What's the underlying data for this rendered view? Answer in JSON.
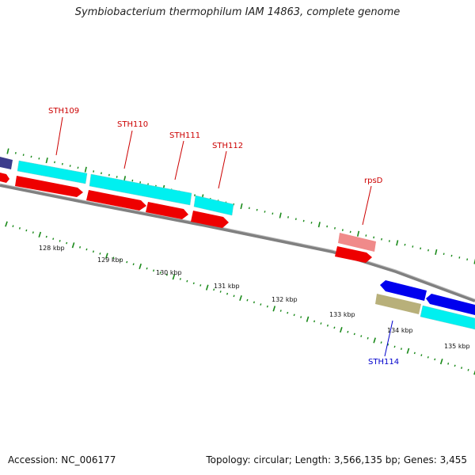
{
  "title": "Symbiobacterium thermophilum IAM 14863, complete genome",
  "accession": "Accession: NC_006177",
  "summary": "Topology: circular; Length: 3,566,135 bp; Genes: 3,455",
  "colors": {
    "backbone": "#808080",
    "cds": "#ff0000",
    "cds_highlight": "#f08080",
    "gene": "#00ffff",
    "gene_dark": "#3c3c8c",
    "minus_cds": "#0000ee",
    "olive": "#b8b07a",
    "tick": "#1a8a1a",
    "label_red": "#cc0000",
    "label_blue": "#0000cc"
  },
  "scale": {
    "labels": [
      "128 kbp",
      "129 kbp",
      "130 kbp",
      "131 kbp",
      "132 kbp",
      "133 kbp",
      "134 kbp",
      "135 kbp"
    ]
  },
  "gene_labels": [
    {
      "name": "STH109",
      "strand": "plus"
    },
    {
      "name": "STH110",
      "strand": "plus"
    },
    {
      "name": "STH111",
      "strand": "plus"
    },
    {
      "name": "STH112",
      "strand": "plus"
    },
    {
      "name": "rpsD",
      "strand": "plus"
    },
    {
      "name": "STH114",
      "strand": "minus"
    }
  ]
}
